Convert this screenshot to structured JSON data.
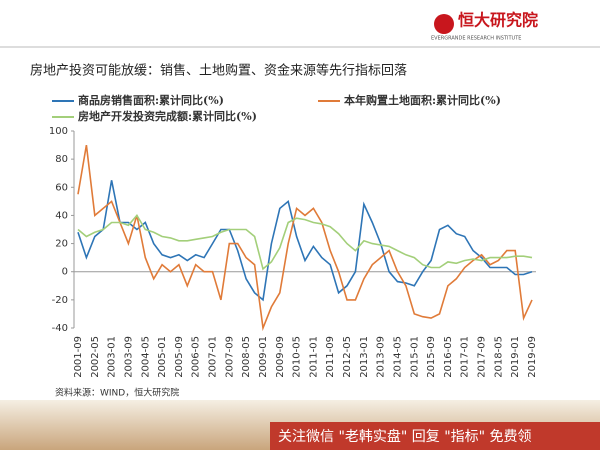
{
  "header": {
    "logo": "恒大研究院",
    "logo_sub": "EVERGRANDE RESEARCH INSTITUTE"
  },
  "source": "资料来源：WIND，恒大研究院",
  "banner": "关注微信 \"老韩实盘\" 回复 \"指标\" 免费领",
  "chart_data": {
    "type": "line",
    "title": "房地产投资可能放缓：销售、土地购置、资金来源等先行指标回落",
    "categories": [
      "2001-09",
      null,
      "2002-05",
      null,
      "2003-01",
      null,
      "2003-09",
      null,
      "2004-05",
      null,
      "2005-01",
      null,
      "2005-09",
      null,
      "2006-05",
      null,
      "2007-01",
      null,
      "2007-09",
      null,
      "2008-05",
      null,
      "2009-01",
      null,
      "2009-09",
      null,
      "2010-05",
      null,
      "2011-01",
      null,
      "2011-09",
      null,
      "2012-05",
      null,
      "2013-01",
      null,
      "2013-09",
      null,
      "2014-05",
      null,
      "2015-01",
      null,
      "2015-09",
      null,
      "2016-05",
      null,
      "2017-01",
      null,
      "2017-09",
      null,
      "2018-05",
      null,
      "2019-01",
      null,
      "2019-09"
    ],
    "series": [
      {
        "name": "商品房销售面积:累计同比(%)",
        "color": "#2e75b6",
        "values": [
          28,
          10,
          25,
          30,
          65,
          35,
          35,
          30,
          35,
          20,
          12,
          10,
          12,
          8,
          12,
          10,
          20,
          30,
          30,
          15,
          -5,
          -15,
          -20,
          20,
          45,
          50,
          25,
          8,
          18,
          10,
          5,
          -15,
          -10,
          0,
          48,
          35,
          20,
          0,
          -7,
          -8,
          -10,
          0,
          8,
          30,
          33,
          27,
          25,
          15,
          10,
          3,
          3,
          3,
          -2,
          -2,
          0
        ]
      },
      {
        "name": "本年购置土地面积:累计同比(%)",
        "color": "#e07b39",
        "values": [
          55,
          90,
          40,
          45,
          50,
          35,
          20,
          40,
          10,
          -5,
          5,
          0,
          5,
          -10,
          5,
          0,
          0,
          -20,
          20,
          20,
          10,
          5,
          -40,
          -25,
          -15,
          20,
          45,
          40,
          45,
          35,
          15,
          0,
          -20,
          -20,
          -5,
          5,
          10,
          15,
          0,
          -10,
          -30,
          -32,
          -33,
          -30,
          -10,
          -5,
          3,
          8,
          12,
          5,
          8,
          15,
          15,
          -33,
          -20
        ]
      },
      {
        "name": "房地产开发投资完成额:累计同比(%)",
        "color": "#a3cf7a",
        "values": [
          30,
          25,
          28,
          30,
          35,
          35,
          33,
          40,
          30,
          28,
          25,
          24,
          22,
          22,
          23,
          24,
          25,
          28,
          30,
          30,
          30,
          25,
          2,
          7,
          17,
          35,
          38,
          37,
          35,
          34,
          32,
          27,
          20,
          15,
          22,
          20,
          19,
          18,
          15,
          12,
          10,
          5,
          3,
          3,
          7,
          6,
          8,
          9,
          8,
          10,
          10,
          10,
          11,
          11,
          10
        ]
      }
    ],
    "ylim": [
      -40,
      100
    ],
    "yticks": [
      -40,
      -20,
      0,
      20,
      40,
      60,
      80,
      100
    ],
    "grid": false
  }
}
